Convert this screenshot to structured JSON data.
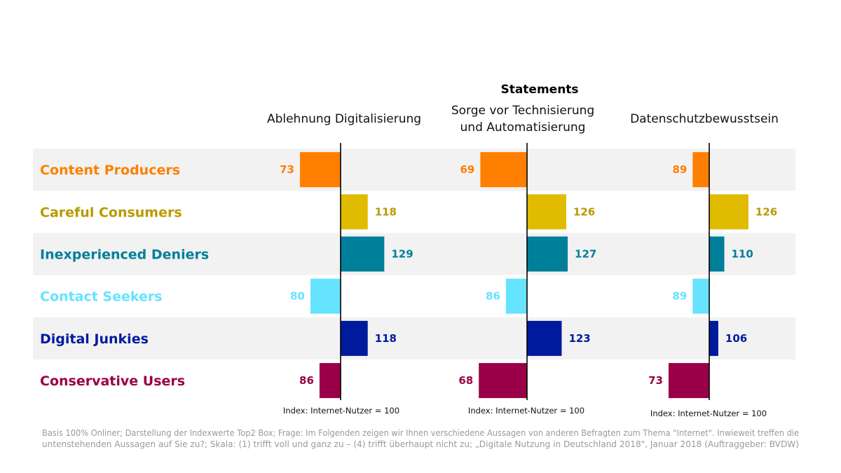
{
  "chart_data": {
    "type": "bar",
    "orientation": "horizontal-diverging",
    "title": "Statements",
    "baseline": 100,
    "categories": [
      "Content Producers",
      "Careful Consumers",
      "Inexperienced Deniers",
      "Contact Seekers",
      "Digital Junkies",
      "Conservative Users"
    ],
    "category_colors": [
      "#ff7f00",
      "#e0bb00",
      "#007f9a",
      "#66e3ff",
      "#001a9e",
      "#990047"
    ],
    "label_colors": [
      "#ff7f00",
      "#b89a00",
      "#007f9a",
      "#66e3ff",
      "#001a9e",
      "#990047"
    ],
    "panels": [
      {
        "name": "Ablehnung Digitalisierung",
        "name_lines": [
          "Ablehnung Digitalisierung"
        ],
        "values": [
          73,
          118,
          129,
          80,
          118,
          86
        ],
        "note": "Index: Internet-Nutzer = 100"
      },
      {
        "name": "Sorge vor Technisierung und Automatisierung",
        "name_lines": [
          "Sorge vor Technisierung",
          "und Automatisierung"
        ],
        "values": [
          69,
          126,
          127,
          86,
          123,
          68
        ],
        "note": "Index: Internet-Nutzer = 100"
      },
      {
        "name": "Datenschutzbewusstsein",
        "name_lines": [
          "Datenschutzbewusstsein"
        ],
        "values": [
          89,
          126,
          110,
          89,
          106,
          73
        ],
        "note": "Index: Internet-Nutzer = 100"
      }
    ]
  },
  "footnote_lines": [
    "Basis 100% Onliner; Darstellung der Indexwerte Top2 Box; Frage: Im Folgenden zeigen wir Ihnen verschiedene Aussagen von anderen Befragten zum Thema \"Internet\". Inwieweit treffen die",
    "untenstehenden Aussagen auf Sie zu?; Skala: (1) trifft voll und ganz zu – (4) trifft überhaupt nicht zu; „Digitale Nutzung in Deutschland 2018\", Januar 2018 (Auftraggeber: BVDW)"
  ]
}
